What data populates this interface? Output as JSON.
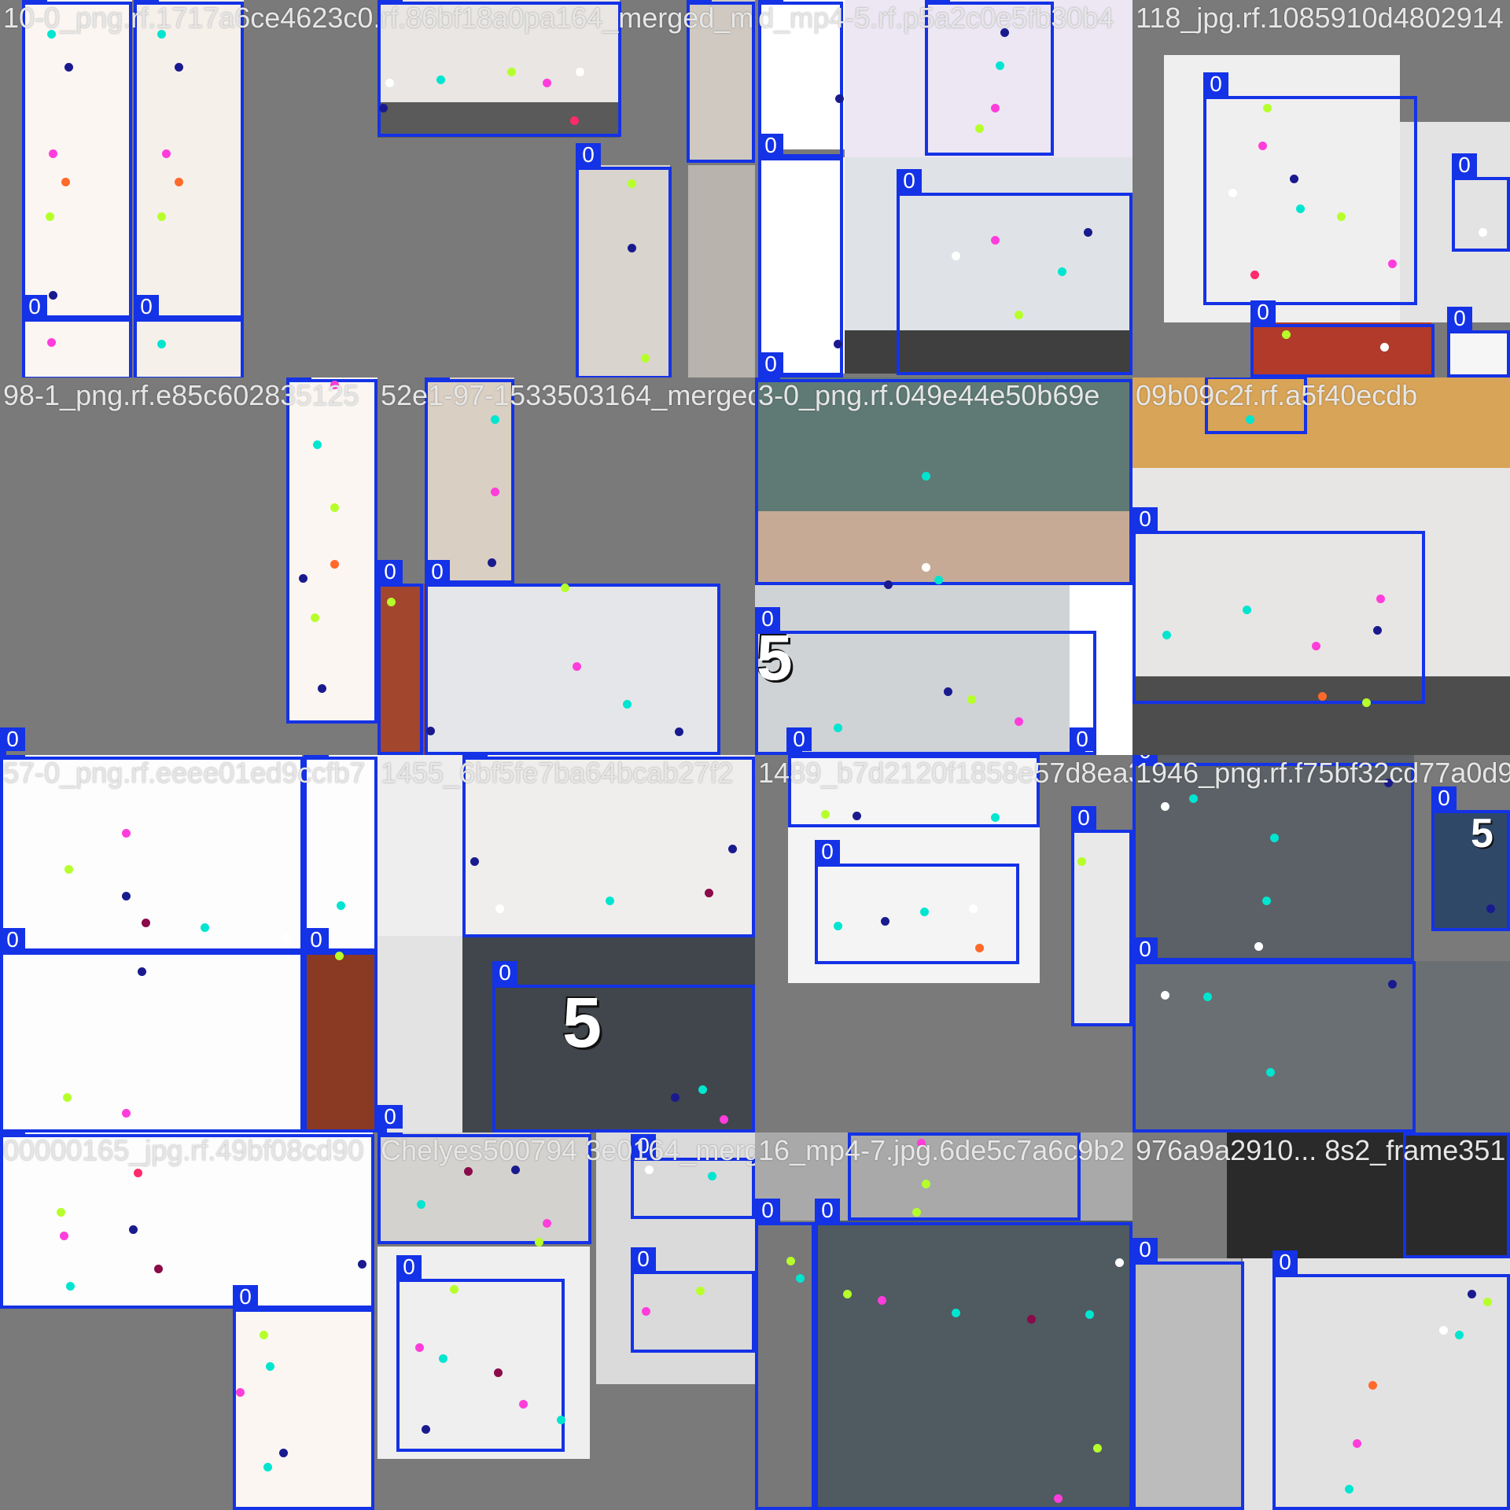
{
  "image_title": "",
  "tiles": [
    {
      "name": "10-0_png.rf.1717a6ce4623c0.rf.86bf18a0pa164_merged_mp4-5.rf.p5a2",
      "background": "#7a7a7a",
      "fragments": [
        {
          "color": "#fbf6f2"
        },
        {
          "color": "#f6f0ea"
        },
        {
          "color": "#fbf6f2"
        },
        {
          "color": "#f6f0ea"
        }
      ],
      "boxes": [
        {
          "label": "0"
        },
        {
          "label": "0"
        },
        {
          "label": "0"
        },
        {
          "label": "0"
        }
      ]
    },
    {
      "name": "rf.86bf18a0pa164_merged_mp4-5.rf.p5a2",
      "background": "#7a7a7a",
      "fragments": [
        {
          "color": "#e9e6e3"
        },
        {
          "color": "#5a5a5a"
        },
        {
          "color": "#d9d4cd"
        },
        {
          "color": "#b8b3ad"
        },
        {
          "color": "#cfc9c1"
        }
      ],
      "boxes": [
        {
          "label": "0"
        },
        {
          "label": "0"
        },
        {
          "label": "0"
        }
      ]
    },
    {
      "name": "d_mp4-5.rf.p5a2c0e5fb30b4",
      "background": "#7a7a7a",
      "fragments": [
        {
          "color": "#ffffff"
        },
        {
          "color": "#ece7f3"
        },
        {
          "color": "#dfe3e7"
        },
        {
          "color": "#3f3f3f"
        },
        {
          "color": "#ffffff"
        }
      ],
      "boxes": [
        {
          "label": "0"
        },
        {
          "label": "0"
        },
        {
          "label": "0"
        },
        {
          "label": "0"
        },
        {
          "label": "0"
        }
      ]
    },
    {
      "name": "118_jpg.rf.1085910d4802914",
      "background": "#7a7a7a",
      "fragments": [
        {
          "color": "#efefef"
        },
        {
          "color": "#e3e3e3"
        },
        {
          "color": "#b13a2a"
        },
        {
          "color": "#f6f6f6"
        }
      ],
      "boxes": [
        {
          "label": "0"
        },
        {
          "label": "0"
        },
        {
          "label": "0"
        },
        {
          "label": "0"
        }
      ]
    },
    {
      "name": "98-1_png.rf.e85c602835125",
      "background": "#7a7a7a",
      "fragments": [
        {
          "color": "#fbf6f2"
        }
      ],
      "boxes": [
        {
          "label": "0"
        },
        {
          "label": "0"
        }
      ]
    },
    {
      "name": "52e1-97-1533503164_merged",
      "background": "#7a7a7a",
      "fragments": [
        {
          "color": "#d9cfc3"
        },
        {
          "color": "#e4e6e9"
        },
        {
          "color": "#a3462e"
        }
      ],
      "boxes": [
        {
          "label": "0"
        },
        {
          "label": "0"
        },
        {
          "label": "0"
        }
      ]
    },
    {
      "name": "3-0_png.rf.049e44e50b69e",
      "background": "#7a7a7a",
      "fragments": [
        {
          "color": "#5f7a74"
        },
        {
          "color": "#c7aa95"
        },
        {
          "color": "#cfd3d6"
        },
        {
          "color": "#ffffff"
        }
      ],
      "boxes": [
        {
          "label": "0"
        },
        {
          "label": "0"
        },
        {
          "label": "0"
        },
        {
          "label": "0"
        }
      ]
    },
    {
      "name": "09b09c2f.rf.a5f40ecdb",
      "background": "#7a7a7a",
      "fragments": [
        {
          "color": "#d8a458"
        },
        {
          "color": "#e7e6e4"
        },
        {
          "color": "#4d4d4d"
        }
      ],
      "boxes": [
        {
          "label": "0"
        },
        {
          "label": "0"
        }
      ]
    },
    {
      "name": "57-0_png.rf.eeee01ed9ccfb7",
      "background": "#7a7a7a",
      "fragments": [
        {
          "color": "#fdfdfd"
        },
        {
          "color": "#fdfdfd"
        },
        {
          "color": "#fdfdfd"
        },
        {
          "color": "#8a3a22"
        }
      ],
      "boxes": [
        {
          "label": "0"
        },
        {
          "label": "0"
        },
        {
          "label": "0"
        },
        {
          "label": "0"
        }
      ]
    },
    {
      "name": "1455_6bf5fe7ba64bcab27f2",
      "background": "#7a7a7a",
      "fragments": [
        {
          "color": "#eeeeee"
        },
        {
          "color": "#f0eeec"
        },
        {
          "color": "#40464b"
        },
        {
          "color": "#e3e3e3"
        }
      ],
      "boxes": [
        {
          "label": "0"
        },
        {
          "label": "0"
        },
        {
          "label": "0"
        }
      ]
    },
    {
      "name": "1489_b7d2120f1858e57d8ea3",
      "background": "#7a7a7a",
      "fragments": [
        {
          "color": "#f5f5f5"
        },
        {
          "color": "#f4f4f4"
        },
        {
          "color": "#e9e9e9"
        }
      ],
      "boxes": [
        {
          "label": "0"
        },
        {
          "label": "0"
        },
        {
          "label": "0"
        }
      ]
    },
    {
      "name": "1946_png.rf.f75bf32cd77a0d9",
      "background": "#7a7a7a",
      "fragments": [
        {
          "color": "#5b6166"
        },
        {
          "color": "#6a6f73"
        },
        {
          "color": "#2f4868"
        }
      ],
      "boxes": [
        {
          "label": "0"
        },
        {
          "label": "0"
        },
        {
          "label": "0"
        }
      ]
    },
    {
      "name": "00000165_jpg.rf.49bf08cd90",
      "background": "#7a7a7a",
      "fragments": [
        {
          "color": "#fdfdfd"
        },
        {
          "color": "#fbf6f2"
        }
      ],
      "boxes": [
        {
          "label": "0"
        },
        {
          "label": "0"
        }
      ]
    },
    {
      "name": "Chelyes500794 3e0164_merged",
      "background": "#7a7a7a",
      "fragments": [
        {
          "color": "#d4d2cf"
        },
        {
          "color": "#efefef"
        },
        {
          "color": "#dadada"
        }
      ],
      "boxes": [
        {
          "label": "0"
        },
        {
          "label": "0"
        },
        {
          "label": "0"
        },
        {
          "label": "0"
        }
      ]
    },
    {
      "name": "16_mp4-7.jpg.6de5c7a6c9b2",
      "background": "#7a7a7a",
      "fragments": [
        {
          "color": "#a9a9a9"
        },
        {
          "color": "#787878"
        },
        {
          "color": "#4f5b60"
        }
      ],
      "boxes": [
        {
          "label": "0"
        },
        {
          "label": "0"
        },
        {
          "label": "0"
        }
      ]
    },
    {
      "name": "976a9a2910... 8s2_frame351",
      "background": "#7a7a7a",
      "fragments": [
        {
          "color": "#2a2a2a"
        },
        {
          "color": "#bcbcbc"
        },
        {
          "color": "#e2e2e2"
        }
      ],
      "boxes": [
        {
          "label": "0"
        },
        {
          "label": "0"
        },
        {
          "label": "0"
        }
      ]
    }
  ],
  "overlay_badge": {
    "text": "5"
  }
}
